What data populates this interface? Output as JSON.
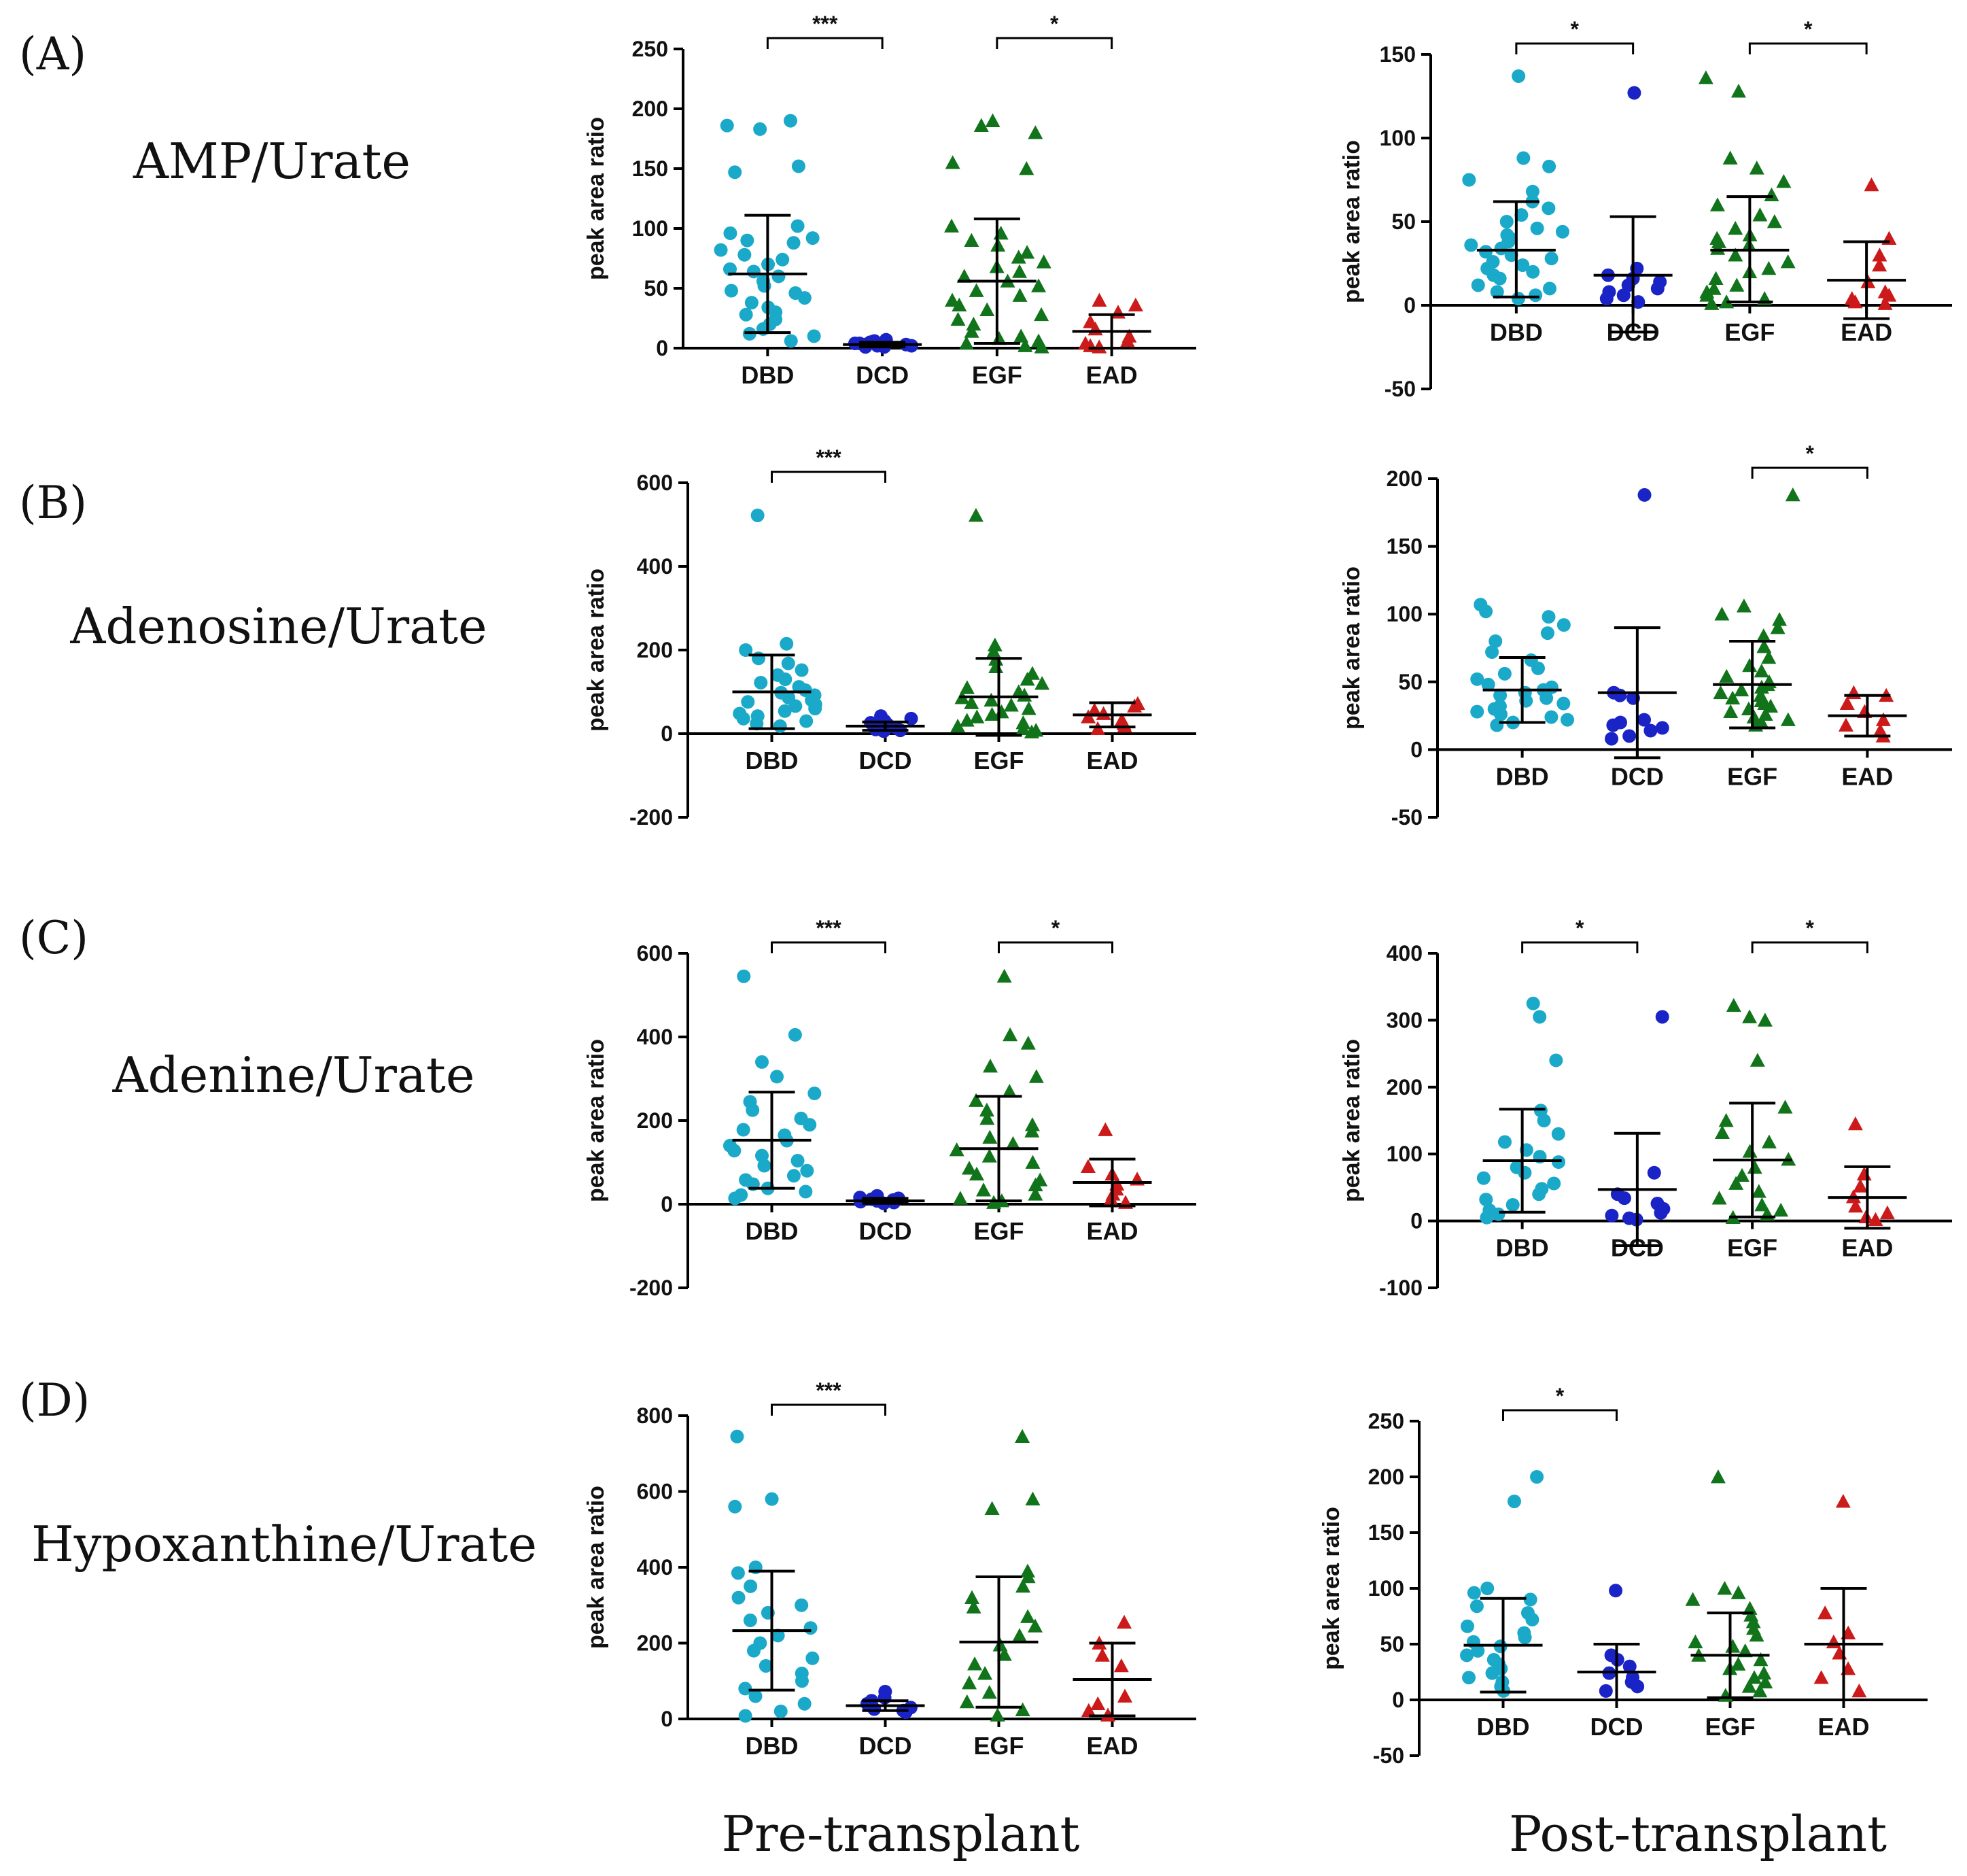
{
  "figure": {
    "columns": [
      "Pre-transplant",
      "Post-transplant"
    ]
  },
  "colors": {
    "DBD": "#1AA9C9",
    "DCD": "#1A23C6",
    "EGF": "#11741B",
    "EAD": "#CC1A1A"
  },
  "chart_data": [
    {
      "type": "scatter",
      "panel": "(A)",
      "row_label": "AMP/Urate",
      "column": "Pre-transplant",
      "categories": [
        "DBD",
        "DCD",
        "EGF",
        "EAD"
      ],
      "ylabel": "peak area ratio",
      "ylim": [
        0,
        250
      ],
      "yticks": [
        0,
        50,
        100,
        150,
        200,
        250
      ],
      "mean": [
        62,
        3,
        56,
        14
      ],
      "sd_upper": [
        111,
        5,
        108,
        28
      ],
      "sd_lower": [
        13,
        1,
        4,
        0
      ],
      "points": [
        [
          190,
          186,
          183,
          152,
          147,
          102,
          96,
          92,
          90,
          88,
          82,
          78,
          74,
          70,
          66,
          64,
          60,
          56,
          52,
          48,
          46,
          42,
          38,
          34,
          30,
          28,
          24,
          20,
          16,
          12,
          10,
          6
        ],
        [
          7,
          6,
          5,
          5,
          4,
          4,
          3,
          3,
          2,
          2,
          1,
          1
        ],
        [
          190,
          186,
          180,
          155,
          150,
          102,
          96,
          90,
          86,
          80,
          76,
          72,
          68,
          64,
          60,
          56,
          52,
          48,
          44,
          40,
          36,
          32,
          28,
          24,
          20,
          14,
          10,
          8,
          6,
          4,
          2,
          1
        ],
        [
          40,
          36,
          30,
          22,
          16,
          10,
          6,
          4,
          2,
          1
        ]
      ],
      "significance": [
        {
          "from": "DBD",
          "to": "DCD",
          "label": "***"
        },
        {
          "from": "EGF",
          "to": "EAD",
          "label": "*"
        }
      ]
    },
    {
      "type": "scatter",
      "panel": "(A)",
      "row_label": "AMP/Urate",
      "column": "Post-transplant",
      "categories": [
        "DBD",
        "DCD",
        "EGF",
        "EAD"
      ],
      "ylabel": "peak area ratio",
      "ylim": [
        -50,
        150
      ],
      "yticks": [
        -50,
        0,
        50,
        100,
        150
      ],
      "mean": [
        33,
        18,
        33,
        15
      ],
      "sd_upper": [
        62,
        53,
        65,
        38
      ],
      "sd_lower": [
        5,
        -16,
        2,
        -8
      ],
      "points": [
        [
          137,
          88,
          83,
          75,
          68,
          62,
          58,
          54,
          50,
          46,
          44,
          42,
          40,
          38,
          36,
          34,
          32,
          30,
          28,
          26,
          24,
          22,
          20,
          18,
          16,
          12,
          10,
          8,
          6,
          4
        ],
        [
          127,
          22,
          18,
          16,
          14,
          12,
          10,
          8,
          6,
          4,
          2
        ],
        [
          136,
          128,
          88,
          82,
          74,
          66,
          60,
          54,
          50,
          46,
          42,
          40,
          38,
          36,
          34,
          30,
          26,
          22,
          20,
          16,
          12,
          10,
          8,
          6,
          4,
          2,
          1
        ],
        [
          72,
          40,
          30,
          24,
          14,
          8,
          6,
          4,
          2,
          1
        ]
      ],
      "significance": [
        {
          "from": "DBD",
          "to": "DCD",
          "label": "*"
        },
        {
          "from": "EGF",
          "to": "EAD",
          "label": "*"
        }
      ]
    },
    {
      "type": "scatter",
      "panel": "(B)",
      "row_label": "Adenosine/Urate",
      "column": "Pre-transplant",
      "categories": [
        "DBD",
        "DCD",
        "EGF",
        "EAD"
      ],
      "ylabel": "peak area ratio",
      "ylim": [
        -200,
        600
      ],
      "yticks": [
        -200,
        0,
        200,
        400,
        600
      ],
      "mean": [
        100,
        18,
        88,
        45
      ],
      "sd_upper": [
        188,
        28,
        180,
        74
      ],
      "sd_lower": [
        12,
        8,
        -4,
        16
      ],
      "points": [
        [
          522,
          215,
          200,
          180,
          168,
          152,
          140,
          130,
          122,
          112,
          104,
          98,
          92,
          86,
          80,
          76,
          70,
          66,
          60,
          54,
          48,
          42,
          36,
          30,
          24,
          18
        ],
        [
          42,
          36,
          30,
          26,
          22,
          18,
          14,
          12,
          10,
          8,
          6
        ],
        [
          522,
          212,
          196,
          178,
          160,
          144,
          130,
          120,
          110,
          100,
          92,
          86,
          80,
          74,
          68,
          60,
          52,
          46,
          40,
          32,
          26,
          18,
          12,
          8,
          4
        ],
        [
          72,
          66,
          56,
          48,
          40,
          32,
          24,
          18,
          12
        ]
      ],
      "significance": [
        {
          "from": "DBD",
          "to": "DCD",
          "label": "***"
        }
      ]
    },
    {
      "type": "scatter",
      "panel": "(B)",
      "row_label": "Adenosine/Urate",
      "column": "Post-transplant",
      "categories": [
        "DBD",
        "DCD",
        "EGF",
        "EAD"
      ],
      "ylabel": "peak area ratio",
      "ylim": [
        -50,
        200
      ],
      "yticks": [
        -50,
        0,
        50,
        100,
        150,
        200
      ],
      "mean": [
        44,
        42,
        48,
        25
      ],
      "sd_upper": [
        68,
        90,
        80,
        40
      ],
      "sd_lower": [
        20,
        -6,
        16,
        10
      ],
      "points": [
        [
          107,
          102,
          98,
          92,
          86,
          80,
          72,
          66,
          60,
          56,
          52,
          48,
          46,
          44,
          42,
          40,
          38,
          36,
          34,
          32,
          30,
          28,
          26,
          24,
          22,
          20,
          18
        ],
        [
          188,
          42,
          40,
          38,
          22,
          20,
          18,
          16,
          14,
          10,
          8
        ],
        [
          188,
          106,
          100,
          96,
          90,
          84,
          76,
          68,
          62,
          58,
          54,
          50,
          48,
          46,
          44,
          42,
          40,
          38,
          36,
          34,
          32,
          30,
          28,
          26,
          24,
          22,
          20,
          18
        ],
        [
          42,
          40,
          34,
          28,
          22,
          18,
          14,
          10
        ]
      ],
      "significance": [
        {
          "from": "EGF",
          "to": "EAD",
          "label": "*"
        }
      ]
    },
    {
      "type": "scatter",
      "panel": "(C)",
      "row_label": "Adenine/Urate",
      "column": "Pre-transplant",
      "categories": [
        "DBD",
        "DCD",
        "EGF",
        "EAD"
      ],
      "ylabel": "peak area ratio",
      "ylim": [
        -200,
        600
      ],
      "yticks": [
        -200,
        0,
        200,
        400,
        600
      ],
      "mean": [
        153,
        8,
        133,
        52
      ],
      "sd_upper": [
        268,
        14,
        258,
        108
      ],
      "sd_lower": [
        38,
        2,
        8,
        -4
      ],
      "points": [
        [
          545,
          405,
          340,
          305,
          265,
          245,
          225,
          205,
          190,
          178,
          165,
          152,
          140,
          128,
          116,
          104,
          92,
          80,
          68,
          58,
          48,
          38,
          30,
          22,
          14
        ],
        [
          20,
          16,
          14,
          12,
          10,
          8,
          6,
          4,
          2
        ],
        [
          545,
          405,
          385,
          330,
          305,
          270,
          248,
          225,
          205,
          190,
          175,
          160,
          145,
          130,
          115,
          100,
          86,
          72,
          58,
          46,
          34,
          24,
          14,
          8,
          4
        ],
        [
          178,
          90,
          72,
          60,
          48,
          36,
          24,
          12,
          4
        ]
      ],
      "significance": [
        {
          "from": "DBD",
          "to": "DCD",
          "label": "***"
        },
        {
          "from": "EGF",
          "to": "EAD",
          "label": "*"
        }
      ]
    },
    {
      "type": "scatter",
      "panel": "(C)",
      "row_label": "Adenine/Urate",
      "column": "Post-transplant",
      "categories": [
        "DBD",
        "DCD",
        "EGF",
        "EAD"
      ],
      "ylabel": "peak area ratio",
      "ylim": [
        -100,
        400
      ],
      "yticks": [
        -100,
        0,
        100,
        200,
        300,
        400
      ],
      "mean": [
        90,
        47,
        91,
        35
      ],
      "sd_upper": [
        167,
        131,
        176,
        81
      ],
      "sd_lower": [
        13,
        -37,
        6,
        -11
      ],
      "points": [
        [
          325,
          305,
          240,
          165,
          150,
          130,
          118,
          106,
          96,
          88,
          80,
          72,
          64,
          56,
          48,
          40,
          32,
          24,
          16,
          10,
          5
        ],
        [
          305,
          72,
          40,
          34,
          26,
          18,
          12,
          8,
          4,
          2
        ],
        [
          322,
          305,
          300,
          240,
          170,
          150,
          132,
          118,
          104,
          92,
          80,
          68,
          56,
          44,
          34,
          24,
          16,
          10,
          5
        ],
        [
          145,
          70,
          52,
          36,
          22,
          12,
          6,
          2
        ]
      ],
      "significance": [
        {
          "from": "DBD",
          "to": "DCD",
          "label": "*"
        },
        {
          "from": "EGF",
          "to": "EAD",
          "label": "*"
        }
      ]
    },
    {
      "type": "scatter",
      "panel": "(D)",
      "row_label": "Hypoxanthine/Urate",
      "column": "Pre-transplant",
      "categories": [
        "DBD",
        "DCD",
        "EGF",
        "EAD"
      ],
      "ylabel": "peak area ratio",
      "ylim": [
        0,
        800
      ],
      "yticks": [
        0,
        200,
        400,
        600,
        800
      ],
      "mean": [
        233,
        35,
        203,
        104
      ],
      "sd_upper": [
        390,
        48,
        375,
        200
      ],
      "sd_lower": [
        76,
        22,
        31,
        8
      ],
      "points": [
        [
          745,
          580,
          560,
          400,
          385,
          350,
          320,
          300,
          280,
          260,
          240,
          220,
          200,
          180,
          160,
          140,
          120,
          100,
          80,
          60,
          40,
          20,
          8
        ],
        [
          72,
          56,
          48,
          40,
          34,
          30,
          26,
          22,
          18
        ],
        [
          745,
          580,
          555,
          390,
          375,
          350,
          320,
          295,
          270,
          245,
          220,
          195,
          170,
          145,
          120,
          95,
          70,
          45,
          24,
          10
        ],
        [
          255,
          200,
          168,
          140,
          60,
          40,
          22,
          10
        ]
      ],
      "significance": [
        {
          "from": "DBD",
          "to": "DCD",
          "label": "***"
        }
      ]
    },
    {
      "type": "scatter",
      "panel": "(D)",
      "row_label": "Hypoxanthine/Urate",
      "column": "Post-transplant",
      "categories": [
        "DBD",
        "DCD",
        "EGF",
        "EAD"
      ],
      "ylabel": "peak area ratio",
      "ylim": [
        -50,
        250
      ],
      "yticks": [
        -50,
        0,
        50,
        100,
        150,
        200,
        250
      ],
      "mean": [
        49,
        25,
        40,
        50
      ],
      "sd_upper": [
        91,
        50,
        78,
        100
      ],
      "sd_lower": [
        7,
        0,
        2,
        0
      ],
      "points": [
        [
          200,
          178,
          100,
          96,
          90,
          84,
          78,
          72,
          66,
          60,
          56,
          52,
          48,
          44,
          40,
          36,
          32,
          28,
          24,
          20,
          16,
          12,
          8
        ],
        [
          98,
          40,
          36,
          30,
          24,
          20,
          16,
          12,
          8
        ],
        [
          200,
          100,
          96,
          90,
          82,
          76,
          70,
          64,
          58,
          52,
          48,
          44,
          40,
          36,
          32,
          28,
          24,
          20,
          16,
          12,
          8,
          4
        ],
        [
          178,
          78,
          60,
          52,
          42,
          28,
          20,
          8
        ]
      ],
      "significance": [
        {
          "from": "DBD",
          "to": "DCD",
          "label": "*"
        }
      ]
    }
  ]
}
